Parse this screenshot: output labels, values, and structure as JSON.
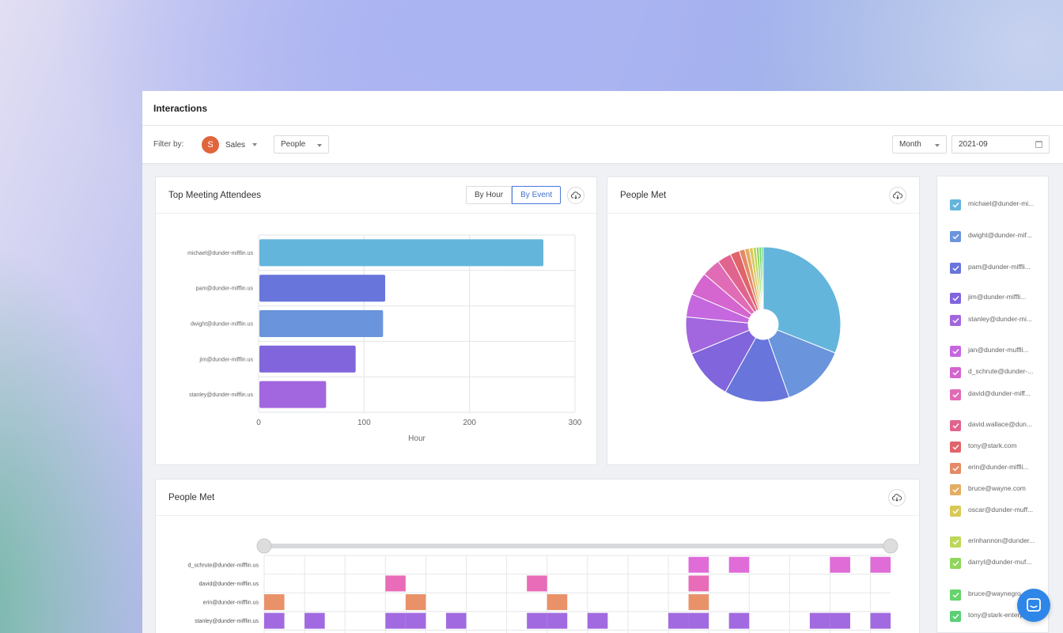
{
  "header": {
    "title": "Interactions"
  },
  "filters": {
    "label": "Filter by:",
    "team": {
      "initial": "S",
      "name": "Sales",
      "avatar_color": "#e0643c"
    },
    "people_select": "People",
    "period_select": "Month",
    "date_value": "2021-09"
  },
  "top_attendees": {
    "title": "Top Meeting Attendees",
    "toggle": {
      "by_hour": "By Hour",
      "by_event": "By Event",
      "active": "By Event"
    },
    "download_icon": "cloud-download-icon"
  },
  "people_met_pie": {
    "title": "People Met",
    "download_icon": "cloud-download-icon"
  },
  "people_met_timeline": {
    "title": "People Met",
    "download_icon": "cloud-download-icon"
  },
  "legend": [
    {
      "label": "michael@dunder-mi...",
      "color": "#64b5dc"
    },
    {
      "label": "dwight@dunder-mif...",
      "color": "#6a94dc"
    },
    {
      "label": "pam@dunder-miffli...",
      "color": "#6875db"
    },
    {
      "label": "jim@dunder-miffli...",
      "color": "#8165dc"
    },
    {
      "label": "stanley@dunder-mi...",
      "color": "#a267de"
    },
    {
      "label": "jan@dunder-muffli...",
      "color": "#c567df"
    },
    {
      "label": "d_schrute@dunder-...",
      "color": "#d565cf"
    },
    {
      "label": "david@dunder-miff...",
      "color": "#e06cb6"
    },
    {
      "label": "david.wallace@dun...",
      "color": "#e0648d"
    },
    {
      "label": "tony@stark.com",
      "color": "#e0646a"
    },
    {
      "label": "erin@dunder-miffli...",
      "color": "#e48a66"
    },
    {
      "label": "bruce@wayne.com",
      "color": "#e3ad63"
    },
    {
      "label": "oscar@dunder-muff...",
      "color": "#d8c957"
    },
    {
      "label": "erinhannon@dunder...",
      "color": "#bcd75a"
    },
    {
      "label": "darryl@dunder-muf...",
      "color": "#8fd65c"
    },
    {
      "label": "bruce@waynegro...",
      "color": "#66d46b"
    },
    {
      "label": "tony@stark-enterp...",
      "color": "#5ccf76"
    }
  ],
  "chat_icon": "chat-icon",
  "chart_data": [
    {
      "type": "bar",
      "orientation": "horizontal",
      "title": "Top Meeting Attendees",
      "categories": [
        "michael@dunder-mifflin.us",
        "pam@dunder-mifflin.us",
        "dwight@dunder-mifflin.us",
        "jim@dunder-mifflin.us",
        "stanley@dunder-mifflin.us"
      ],
      "values": [
        270,
        120,
        118,
        92,
        64
      ],
      "colors": [
        "#64b5dc",
        "#6875db",
        "#6a94dc",
        "#8165dc",
        "#a267de"
      ],
      "xlabel": "Hour",
      "xlim": [
        0,
        300
      ],
      "xticks": [
        0,
        100,
        200,
        300
      ],
      "grid": true
    },
    {
      "type": "pie",
      "title": "People Met",
      "labels": [
        "michael@dunder-mi...",
        "dwight@dunder-mif...",
        "pam@dunder-miffli...",
        "jim@dunder-miffli...",
        "stanley@dunder-mi...",
        "jan@dunder-muffli...",
        "d_schrute@dunder-...",
        "david@dunder-miff...",
        "david.wallace@dun...",
        "tony@stark.com",
        "erin@dunder-miffli...",
        "bruce@wayne.com",
        "oscar@dunder-muff...",
        "erinhannon@dunder...",
        "darryl@dunder-muf...",
        "bruce@waynegro...",
        "tony@stark-enterp..."
      ],
      "values": [
        32,
        14,
        14,
        11,
        8,
        5,
        5,
        4,
        3,
        2,
        1.2,
        1,
        0.8,
        0.7,
        0.6,
        0.5,
        0.4
      ],
      "donut": true
    },
    {
      "type": "heatmap",
      "title": "People Met",
      "rows": [
        "d_schrute@dunder-mifflin.us",
        "david@dunder-mifflin.us",
        "erin@dunder-mifflin.us",
        "stanley@dunder-mifflin.us"
      ],
      "columns": 31,
      "cells": {
        "d_schrute@dunder-mifflin.us": [
          21,
          23,
          28,
          30
        ],
        "david@dunder-mifflin.us": [
          6,
          13,
          21
        ],
        "erin@dunder-mifflin.us": [
          0,
          7,
          14,
          21
        ],
        "stanley@dunder-mifflin.us": [
          0,
          2,
          6,
          7,
          9,
          13,
          14,
          16,
          20,
          21,
          23,
          27,
          28,
          30
        ]
      },
      "row_colors": [
        "#e06cd8",
        "#e86cb8",
        "#e9926a",
        "#a26ae0"
      ]
    }
  ]
}
